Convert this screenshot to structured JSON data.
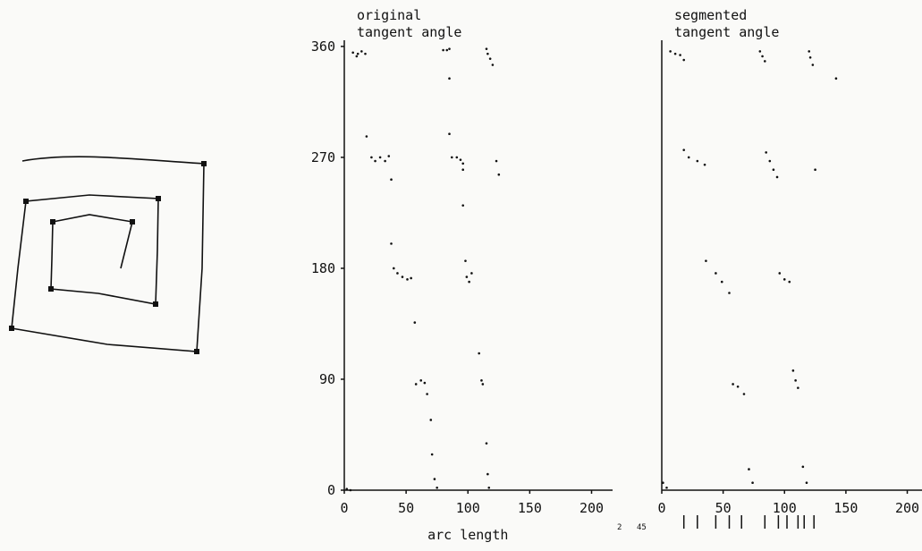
{
  "chart_data": [
    {
      "type": "scatter",
      "title": [
        "original",
        "tangent angle"
      ],
      "xlabel": "arc length",
      "xlim": [
        0,
        217
      ],
      "ylim": [
        0,
        365
      ],
      "xticks": [
        0,
        50,
        100,
        150,
        200
      ],
      "yticks": [
        0,
        90,
        180,
        270,
        360
      ],
      "series": [
        {
          "color": "#111111",
          "x": [
            7,
            11,
            14,
            10,
            17,
            83,
            80,
            85,
            118,
            120,
            116,
            115,
            85,
            18,
            85,
            22,
            25,
            29,
            33,
            36,
            87,
            91,
            94,
            96,
            96,
            123,
            125,
            38,
            96,
            38,
            40,
            43,
            47,
            51,
            54,
            98,
            99,
            101,
            103,
            57,
            109,
            58,
            62,
            65,
            67,
            111,
            112,
            70,
            115,
            71,
            73,
            75,
            116,
            117,
            2,
            5
          ],
          "y": [
            355,
            354,
            356,
            352,
            354,
            357,
            357,
            358,
            350,
            345,
            354,
            358,
            334,
            287,
            289,
            270,
            267,
            270,
            267,
            271,
            270,
            270,
            268,
            265,
            260,
            267,
            256,
            252,
            231,
            200,
            180,
            176,
            173,
            171,
            172,
            186,
            173,
            169,
            176,
            136,
            111,
            86,
            89,
            87,
            78,
            89,
            86,
            57,
            38,
            29,
            9,
            2,
            13,
            2,
            1,
            0
          ]
        }
      ]
    },
    {
      "type": "scatter",
      "title": [
        "segmented",
        "tangent angle"
      ],
      "xlim": [
        0,
        212
      ],
      "ylim": [
        0,
        365
      ],
      "xticks": [
        0,
        50,
        100,
        150,
        200
      ],
      "annotations": [
        "2",
        "45"
      ],
      "segment_marks": [
        18,
        29,
        44,
        55,
        65,
        84,
        95,
        102,
        111,
        116,
        124
      ],
      "series": [
        {
          "color": "#111111",
          "x": [
            7,
            11,
            15,
            18,
            80,
            82,
            84,
            120,
            121,
            123,
            142,
            18,
            22,
            29,
            35,
            85,
            88,
            91,
            94,
            125,
            36,
            44,
            49,
            55,
            96,
            100,
            104,
            58,
            62,
            67,
            107,
            109,
            111,
            71,
            74,
            115,
            118,
            1,
            4
          ],
          "y": [
            356,
            354,
            353,
            349,
            356,
            352,
            348,
            356,
            351,
            345,
            334,
            276,
            270,
            267,
            264,
            274,
            267,
            260,
            254,
            260,
            186,
            176,
            169,
            160,
            176,
            171,
            169,
            86,
            84,
            78,
            97,
            89,
            83,
            17,
            6,
            19,
            6,
            6,
            2
          ]
        }
      ]
    }
  ]
}
